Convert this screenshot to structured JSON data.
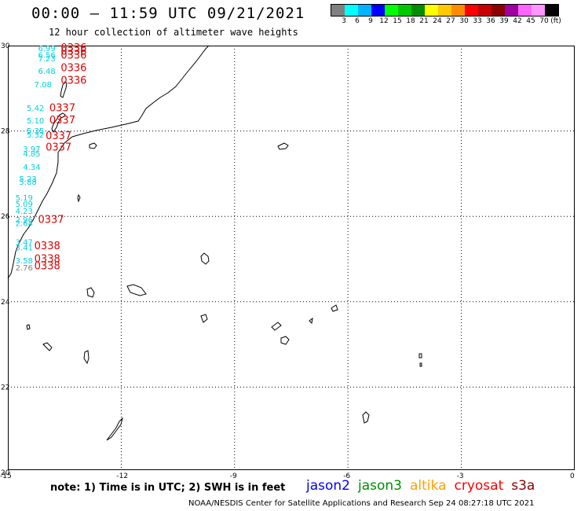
{
  "header": {
    "title": "00:00 – 11:59 UTC 09/21/2021",
    "subtitle": "12 hour collection of altimeter wave heights"
  },
  "legend": {
    "colors": [
      "#808080",
      "#00ffff",
      "#00b4ff",
      "#0000ff",
      "#00ff00",
      "#00c800",
      "#008c00",
      "#ffff00",
      "#ffc800",
      "#ff8c00",
      "#ff0000",
      "#c80000",
      "#8c0000",
      "#a000a0",
      "#ff64ff",
      "#ff96ff",
      "#000000"
    ],
    "labels": [
      "3",
      "6",
      "9",
      "12",
      "15",
      "18",
      "21",
      "24",
      "27",
      "30",
      "33",
      "36",
      "39",
      "42",
      "45",
      "70",
      "(ft)"
    ]
  },
  "map": {
    "lon_ticks": [
      "-15",
      "-12",
      "-9",
      "-6",
      "-3",
      "0"
    ],
    "lat_ticks": [
      "30",
      "28",
      "26",
      "24",
      "22",
      "20"
    ],
    "lon_range": [
      -15,
      0
    ],
    "lat_range": [
      20,
      30
    ],
    "swh": [
      {
        "label": "6.99",
        "lon": -14.2,
        "lat": 29.87
      },
      {
        "label": "6.56",
        "lon": -14.2,
        "lat": 29.71
      },
      {
        "label": "7.23",
        "lon": -14.2,
        "lat": 29.63
      },
      {
        "label": "6.48",
        "lon": -14.2,
        "lat": 29.33
      },
      {
        "label": "7.08",
        "lon": -14.3,
        "lat": 29.02
      },
      {
        "label": "5.42",
        "lon": -14.5,
        "lat": 28.46
      },
      {
        "label": "5.10",
        "lon": -14.5,
        "lat": 28.17
      },
      {
        "label": "5.35",
        "lon": -14.5,
        "lat": 27.93
      },
      {
        "label": "5.32",
        "lon": -14.5,
        "lat": 27.83
      },
      {
        "label": "3.97",
        "lon": -14.6,
        "lat": 27.5
      },
      {
        "label": "4.85",
        "lon": -14.6,
        "lat": 27.39
      },
      {
        "label": "4.34",
        "lon": -14.6,
        "lat": 27.07
      },
      {
        "label": "5.23",
        "lon": -14.7,
        "lat": 26.8
      },
      {
        "label": "5.88",
        "lon": -14.7,
        "lat": 26.72
      },
      {
        "label": "5.19",
        "lon": -14.8,
        "lat": 26.35
      },
      {
        "label": "5.09",
        "lon": -14.8,
        "lat": 26.2
      },
      {
        "label": "4.23",
        "lon": -14.8,
        "lat": 26.04
      },
      {
        "label": "2.96",
        "lon": -14.8,
        "lat": 25.83
      },
      {
        "label": "2.64",
        "lon": -14.8,
        "lat": 25.75
      },
      {
        "label": "3.47",
        "lon": -14.8,
        "lat": 25.31
      },
      {
        "label": "3.41",
        "lon": -14.8,
        "lat": 25.18
      },
      {
        "label": "3.58",
        "lon": -14.8,
        "lat": 24.87
      },
      {
        "label": "2.76",
        "lon": -14.8,
        "lat": 24.7
      }
    ],
    "times": [
      {
        "label": "0336",
        "lon": -13.6,
        "lat": 29.87
      },
      {
        "label": "0336",
        "lon": -13.6,
        "lat": 29.79
      },
      {
        "label": "0336",
        "lon": -13.6,
        "lat": 29.69
      },
      {
        "label": "0336",
        "lon": -13.6,
        "lat": 29.4
      },
      {
        "label": "0336",
        "lon": -13.6,
        "lat": 29.1
      },
      {
        "label": "0337",
        "lon": -13.9,
        "lat": 28.45
      },
      {
        "label": "0337",
        "lon": -13.9,
        "lat": 28.17
      },
      {
        "label": "0337",
        "lon": -14.0,
        "lat": 27.8
      },
      {
        "label": "0337",
        "lon": -14.0,
        "lat": 27.53
      },
      {
        "label": "0337",
        "lon": -14.2,
        "lat": 25.82
      },
      {
        "label": "0338",
        "lon": -14.3,
        "lat": 25.2
      },
      {
        "label": "0338",
        "lon": -14.3,
        "lat": 24.9
      },
      {
        "label": "0338",
        "lon": -14.3,
        "lat": 24.73
      }
    ]
  },
  "footer": {
    "note": "note:  1) Time is in UTC;  2) SWH is in feet",
    "satellites": [
      {
        "name": "jason2",
        "color": "#0000ff"
      },
      {
        "name": "jason3",
        "color": "#008c00"
      },
      {
        "name": "altika",
        "color": "#ffa000"
      },
      {
        "name": "cryosat",
        "color": "#ff0000"
      },
      {
        "name": "s3a",
        "color": "#8c0000"
      }
    ],
    "credit": "NOAA/NESDIS Center for Satellite Applications and Research     Sep 24 08:27:18 UTC 2021"
  }
}
